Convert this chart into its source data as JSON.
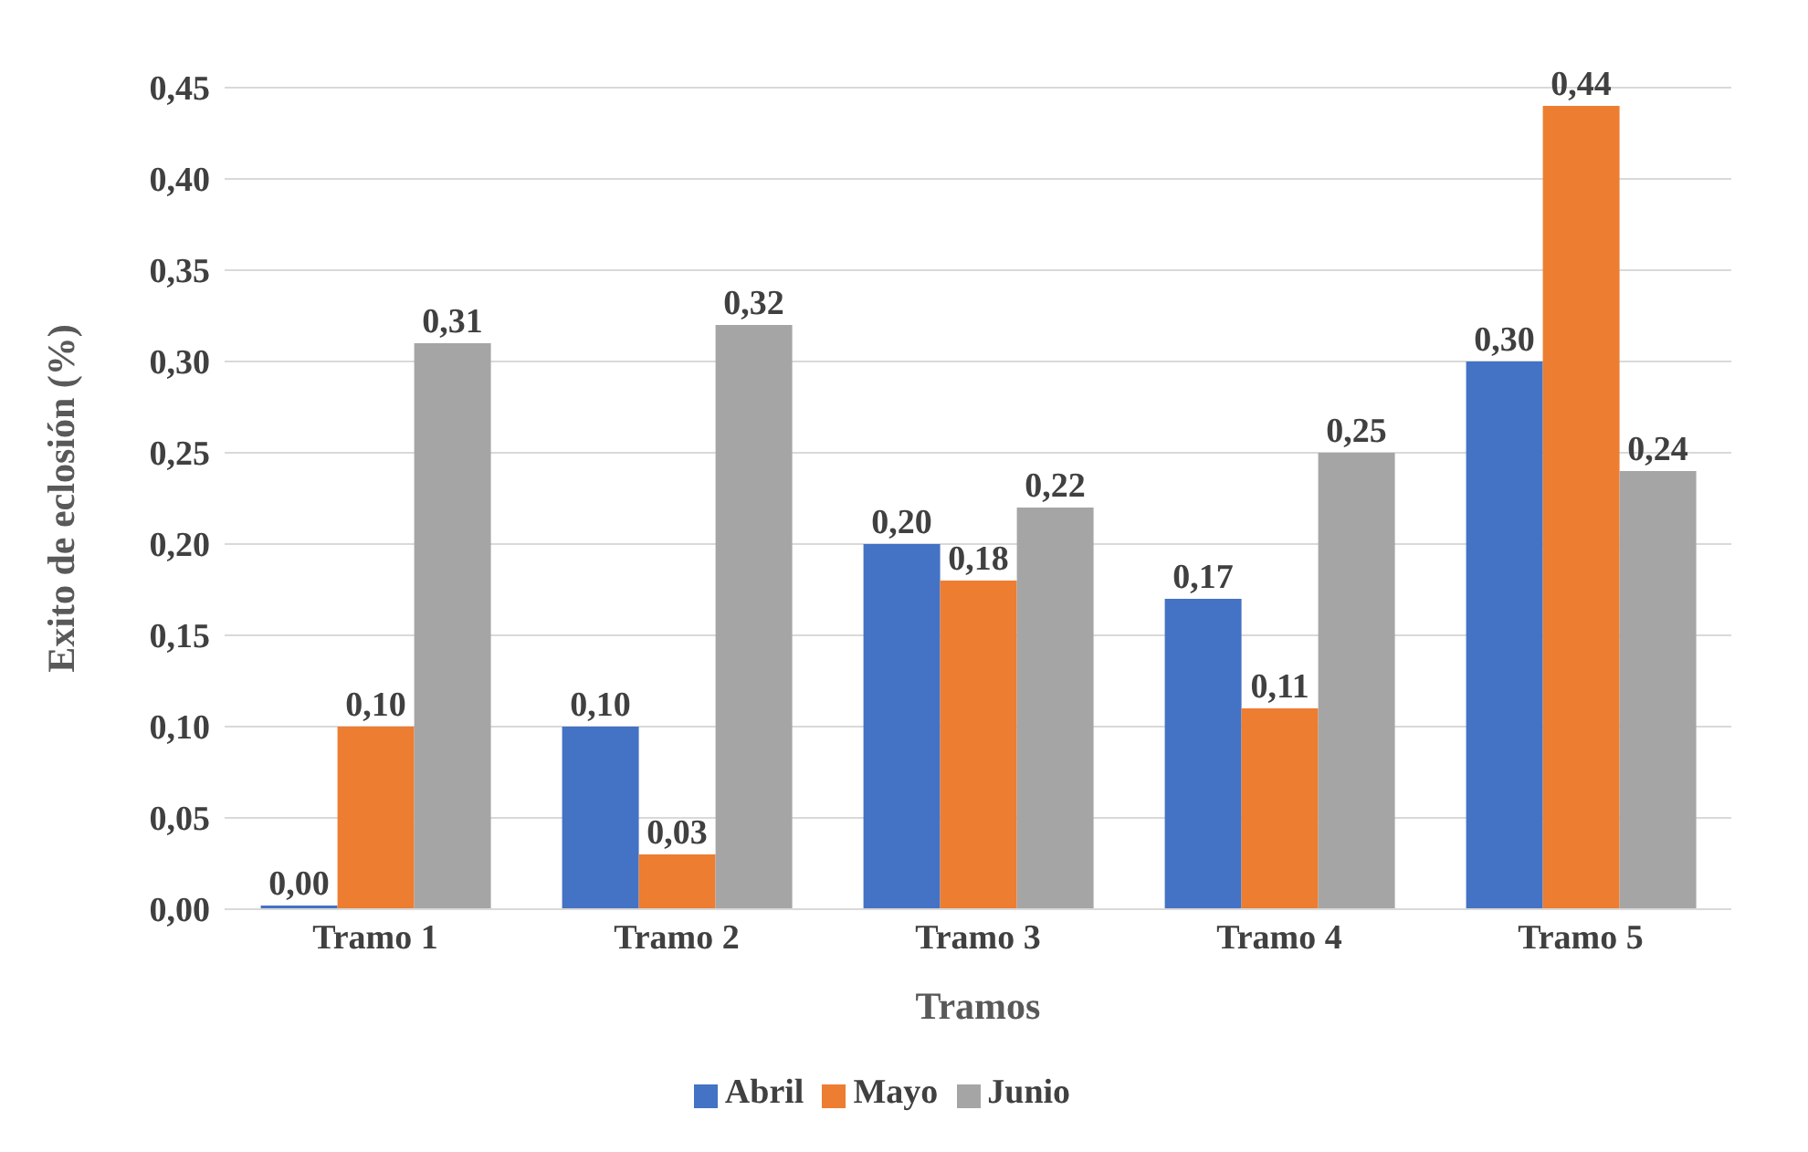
{
  "chart_data": {
    "type": "bar",
    "xlabel": "Tramos",
    "ylabel": "Exito de eclosión (%)",
    "categories": [
      "Tramo 1",
      "Tramo 2",
      "Tramo 3",
      "Tramo 4",
      "Tramo 5"
    ],
    "series": [
      {
        "name": "Abril",
        "color": "#4472c4",
        "values": [
          0.0,
          0.1,
          0.2,
          0.17,
          0.3
        ],
        "value_labels": [
          "0,00",
          "0,10",
          "0,20",
          "0,17",
          "0,30"
        ]
      },
      {
        "name": "Mayo",
        "color": "#ed7d31",
        "values": [
          0.1,
          0.03,
          0.18,
          0.11,
          0.44
        ],
        "value_labels": [
          "0,10",
          "0,03",
          "0,18",
          "0,11",
          "0,44"
        ]
      },
      {
        "name": "Junio",
        "color": "#a5a5a5",
        "values": [
          0.31,
          0.32,
          0.22,
          0.25,
          0.24
        ],
        "value_labels": [
          "0,31",
          "0,32",
          "0,22",
          "0,25",
          "0,24"
        ]
      }
    ],
    "ylim": [
      0,
      0.45
    ],
    "yticks": [
      {
        "value": 0,
        "label": "0,00"
      },
      {
        "value": 0.05,
        "label": "0,05"
      },
      {
        "value": 0.1,
        "label": "0,10"
      },
      {
        "value": 0.15,
        "label": "0,15"
      },
      {
        "value": 0.2,
        "label": "0,20"
      },
      {
        "value": 0.25,
        "label": "0,25"
      },
      {
        "value": 0.3,
        "label": "0,30"
      },
      {
        "value": 0.35,
        "label": "0,35"
      },
      {
        "value": 0.4,
        "label": "0,40"
      },
      {
        "value": 0.45,
        "label": "0,45"
      }
    ],
    "grid": "y",
    "legend": "bottom"
  }
}
